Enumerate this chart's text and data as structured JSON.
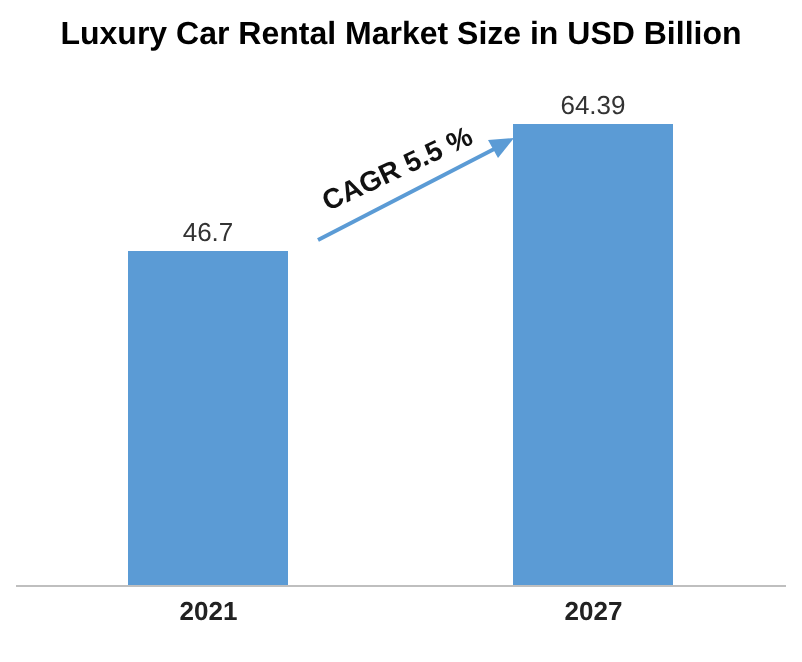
{
  "chart_data": {
    "type": "bar",
    "title": "Luxury Car Rental Market Size in USD Billion",
    "categories": [
      "2021",
      "2027"
    ],
    "values": [
      46.7,
      64.39
    ],
    "color": "#5b9bd5",
    "data_labels": true,
    "annotations": [
      "CAGR 5.5 %"
    ]
  }
}
